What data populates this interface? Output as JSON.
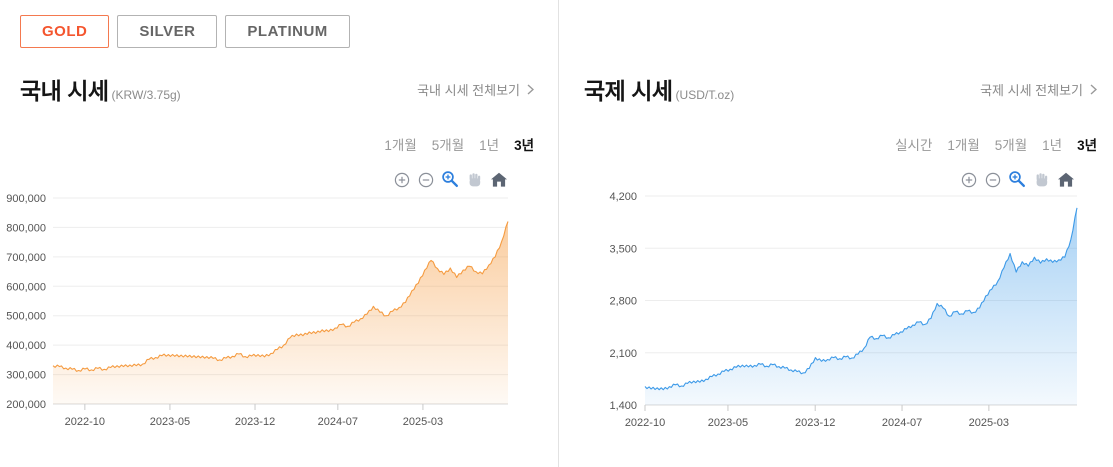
{
  "tabs": [
    {
      "label": "GOLD",
      "active": true
    },
    {
      "label": "SILVER",
      "active": false
    },
    {
      "label": "PLATINUM",
      "active": false
    }
  ],
  "accent_color": "#f4552e",
  "panels": [
    {
      "title": "국내 시세",
      "unit": "(KRW/3.75g)",
      "view_all": "국내 시세 전체보기",
      "periods": [
        "1개월",
        "5개월",
        "1년",
        "3년"
      ],
      "active_period": "3년",
      "toolbar_icons": [
        "zoom-in-circle-icon",
        "zoom-out-circle-icon",
        "magnifier-zoom-icon",
        "pan-hand-icon",
        "home-reset-icon"
      ]
    },
    {
      "title": "국제 시세",
      "unit": "(USD/T.oz)",
      "view_all": "국제 시세 전체보기",
      "periods": [
        "실시간",
        "1개월",
        "5개월",
        "1년",
        "3년"
      ],
      "active_period": "3년",
      "toolbar_icons": [
        "zoom-in-circle-icon",
        "zoom-out-circle-icon",
        "magnifier-zoom-icon",
        "pan-hand-icon",
        "home-reset-icon"
      ]
    }
  ],
  "chart_data": [
    {
      "type": "area",
      "title": "국내 시세 (GOLD, 3년)",
      "ylabel": "KRW/3.75g",
      "ylim": [
        200000,
        900000
      ],
      "yticks": [
        200000,
        300000,
        400000,
        500000,
        600000,
        700000,
        800000,
        900000
      ],
      "xticks": [
        {
          "label": "2022-10",
          "f": 0.07
        },
        {
          "label": "2023-05",
          "f": 0.257
        },
        {
          "label": "2023-12",
          "f": 0.444
        },
        {
          "label": "2024-07",
          "f": 0.626
        },
        {
          "label": "2025-03",
          "f": 0.813
        }
      ],
      "grid": true,
      "legend": "none",
      "line_color": "#f59b40",
      "fill_top": "rgba(245,155,64,0.50)",
      "fill_bottom": "rgba(245,155,64,0.05)",
      "values": [
        330000,
        327000,
        322000,
        318000,
        314000,
        319000,
        316000,
        321000,
        318000,
        324000,
        330000,
        327000,
        333000,
        330000,
        336000,
        352000,
        358000,
        364000,
        368000,
        362000,
        366000,
        360000,
        364000,
        357000,
        361000,
        355000,
        350000,
        356000,
        362000,
        370000,
        361000,
        363000,
        368000,
        360000,
        372000,
        385000,
        400000,
        425000,
        438000,
        432000,
        445000,
        440000,
        452000,
        446000,
        458000,
        470000,
        464000,
        478000,
        490000,
        505000,
        532000,
        512000,
        500000,
        515000,
        528000,
        545000,
        585000,
        610000,
        655000,
        688000,
        660000,
        640000,
        662000,
        630000,
        655000,
        668000,
        650000,
        642000,
        672000,
        700000,
        752000,
        820000
      ]
    },
    {
      "type": "area",
      "title": "국제 시세 (GOLD, 3년)",
      "ylabel": "USD/T.oz",
      "ylim": [
        1400,
        4200
      ],
      "yticks": [
        1400,
        2100,
        2800,
        3500,
        4200
      ],
      "xticks": [
        {
          "label": "2022-10",
          "f": 0.0
        },
        {
          "label": "2023-05",
          "f": 0.192
        },
        {
          "label": "2023-12",
          "f": 0.394
        },
        {
          "label": "2024-07",
          "f": 0.595
        },
        {
          "label": "2025-03",
          "f": 0.796
        }
      ],
      "grid": true,
      "legend": "none",
      "line_color": "#3d9ae8",
      "fill_top": "rgba(61,154,232,0.45)",
      "fill_bottom": "rgba(61,154,232,0.06)",
      "values": [
        1648,
        1615,
        1630,
        1605,
        1645,
        1670,
        1655,
        1690,
        1720,
        1705,
        1745,
        1780,
        1815,
        1850,
        1880,
        1905,
        1935,
        1910,
        1930,
        1945,
        1920,
        1940,
        1915,
        1895,
        1870,
        1848,
        1830,
        1890,
        2035,
        1985,
        2010,
        2035,
        2020,
        2045,
        2030,
        2080,
        2160,
        2310,
        2290,
        2330,
        2300,
        2340,
        2380,
        2420,
        2470,
        2510,
        2480,
        2560,
        2760,
        2700,
        2590,
        2650,
        2620,
        2660,
        2640,
        2700,
        2860,
        2950,
        3060,
        3240,
        3430,
        3180,
        3320,
        3260,
        3380,
        3300,
        3360,
        3310,
        3345,
        3380,
        3620,
        4040
      ]
    }
  ]
}
